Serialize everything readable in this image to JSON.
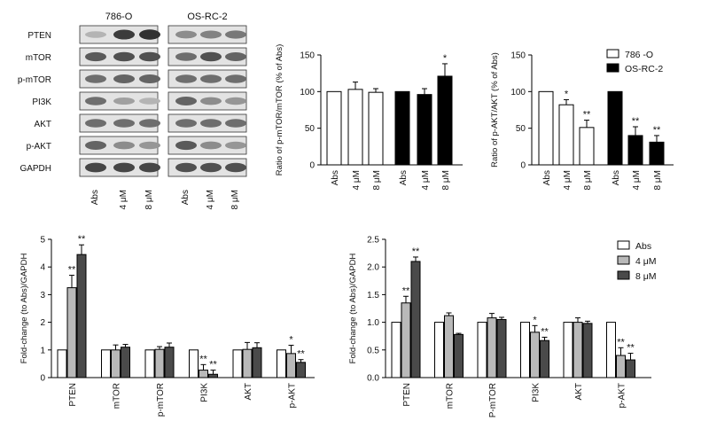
{
  "western_blot": {
    "groups": [
      "786-O",
      "OS-RC-2"
    ],
    "proteins": [
      "PTEN",
      "mTOR",
      "p-mTOR",
      "PI3K",
      "AKT",
      "p-AKT",
      "GAPDH"
    ],
    "lanes": [
      "Abs",
      "4 μM",
      "8 μM",
      "Abs",
      "4 μM",
      "8 μM"
    ]
  },
  "chart_data": [
    {
      "type": "bar",
      "panel": "top-middle",
      "categories": [
        "Abs",
        "4 μM",
        "8 μM",
        "Abs",
        "4 μM",
        "8 μM"
      ],
      "series": [
        {
          "values": [
            100,
            103,
            99,
            null,
            null,
            null
          ],
          "errors": [
            0,
            10,
            5,
            null,
            null,
            null
          ],
          "color": "#ffffff",
          "sig": [
            "",
            "",
            "",
            "",
            "",
            ""
          ]
        },
        {
          "values": [
            null,
            null,
            null,
            100,
            96,
            121
          ],
          "errors": [
            null,
            null,
            null,
            0,
            8,
            17
          ],
          "color": "#000000",
          "sig": [
            "",
            "",
            "",
            "",
            "",
            "*"
          ]
        }
      ],
      "ylabel": "Ratio of p-mTOR/mTOR (% of Abs)",
      "ylim": [
        0,
        150
      ],
      "yticks": [
        0,
        50,
        100,
        150
      ]
    },
    {
      "type": "bar",
      "panel": "top-right",
      "categories": [
        "Abs",
        "4 μM",
        "8 μM",
        "Abs",
        "4 μM",
        "8 μM"
      ],
      "series": [
        {
          "name": "786 -O",
          "values": [
            100,
            82,
            51,
            null,
            null,
            null
          ],
          "errors": [
            0,
            7,
            10,
            null,
            null,
            null
          ],
          "color": "#ffffff",
          "sig": [
            "",
            "*",
            "**",
            "",
            "",
            ""
          ]
        },
        {
          "name": "OS-RC-2",
          "values": [
            null,
            null,
            null,
            100,
            40,
            31
          ],
          "errors": [
            null,
            null,
            null,
            0,
            12,
            9
          ],
          "color": "#000000",
          "sig": [
            "",
            "",
            "",
            "",
            "**",
            "**"
          ]
        }
      ],
      "ylabel": "Ratio of p-AKT/AKT (% of Abs)",
      "ylim": [
        0,
        150
      ],
      "yticks": [
        0,
        50,
        100,
        150
      ],
      "legend": "top-right"
    },
    {
      "type": "bar",
      "panel": "bottom-left",
      "categories": [
        "PTEN",
        "mTOR",
        "p-mTOR",
        "PI3K",
        "AKT",
        "p-AKT"
      ],
      "series": [
        {
          "values": [
            1,
            1,
            1,
            1,
            1,
            1
          ],
          "errors": [
            0,
            0,
            0,
            0,
            0,
            0
          ],
          "color": "#ffffff",
          "sig": [
            "",
            "",
            "",
            "",
            "",
            ""
          ]
        },
        {
          "values": [
            3.25,
            1.0,
            1.02,
            0.27,
            1.02,
            0.87
          ],
          "errors": [
            0.45,
            0.18,
            0.1,
            0.2,
            0.25,
            0.3
          ],
          "color": "#b9b9b9",
          "sig": [
            "**",
            "",
            "",
            "**",
            "",
            "*"
          ]
        },
        {
          "values": [
            4.45,
            1.1,
            1.1,
            0.12,
            1.08,
            0.55
          ],
          "errors": [
            0.35,
            0.1,
            0.15,
            0.15,
            0.18,
            0.1
          ],
          "color": "#4a4a4a",
          "sig": [
            "**",
            "",
            "",
            "**",
            "",
            "**"
          ]
        }
      ],
      "ylabel": "Fold-change (to Abs)/GAPDH",
      "ylim": [
        0,
        5
      ],
      "yticks": [
        0,
        1,
        2,
        3,
        4,
        5
      ]
    },
    {
      "type": "bar",
      "panel": "bottom-right",
      "categories": [
        "PTEN",
        "mTOR",
        "P-mTOR",
        "PI3K",
        "AKT",
        "p-AKT"
      ],
      "series": [
        {
          "name": "Abs",
          "values": [
            1,
            1,
            1,
            1,
            1,
            1
          ],
          "errors": [
            0,
            0,
            0,
            0,
            0,
            0
          ],
          "color": "#ffffff",
          "sig": [
            "",
            "",
            "",
            "",
            "",
            ""
          ]
        },
        {
          "name": "4 μM",
          "values": [
            1.35,
            1.12,
            1.08,
            0.82,
            1.0,
            0.4
          ],
          "errors": [
            0.12,
            0.05,
            0.08,
            0.12,
            0.08,
            0.14
          ],
          "color": "#b9b9b9",
          "sig": [
            "**",
            "",
            "",
            "*",
            "",
            "**"
          ]
        },
        {
          "name": "8 μM",
          "values": [
            2.1,
            0.78,
            1.05,
            0.67,
            0.98,
            0.32
          ],
          "errors": [
            0.08,
            0.02,
            0.04,
            0.06,
            0.04,
            0.12
          ],
          "color": "#4a4a4a",
          "sig": [
            "**",
            "",
            "",
            "**",
            "",
            "**"
          ]
        }
      ],
      "ylabel": "Fold-change (to Abs)/GAPDH",
      "ylim": [
        0,
        2.5
      ],
      "yticks": [
        0.0,
        0.5,
        1.0,
        1.5,
        2.0,
        2.5
      ],
      "legend": "top-right"
    }
  ]
}
